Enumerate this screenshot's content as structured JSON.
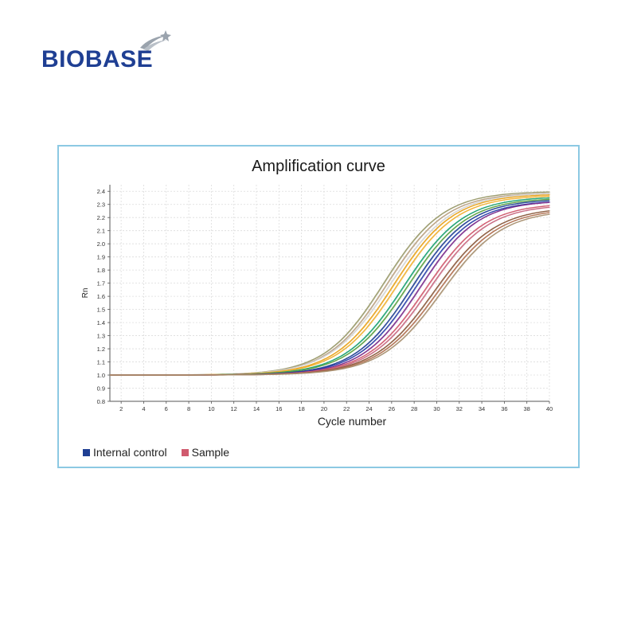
{
  "brand": {
    "name": "BIOBASE",
    "logo_icon": "swoosh-star-logo",
    "colors": {
      "text": "#1f3f93",
      "swoosh": "#9aa3ad"
    }
  },
  "chart_data": {
    "type": "line",
    "title": "Amplification curve",
    "xlabel": "Cycle number",
    "ylabel": "Rn",
    "xlim": [
      1,
      40
    ],
    "ylim": [
      0.8,
      2.45
    ],
    "x_ticks": [
      2,
      4,
      6,
      8,
      10,
      12,
      14,
      16,
      18,
      20,
      22,
      24,
      26,
      28,
      30,
      32,
      34,
      36,
      38,
      40
    ],
    "y_ticks": [
      0.8,
      0.9,
      1.0,
      1.1,
      1.2,
      1.3,
      1.4,
      1.5,
      1.6,
      1.7,
      1.8,
      1.9,
      2.0,
      2.1,
      2.2,
      2.3,
      2.4
    ],
    "grid": true,
    "legend": [
      {
        "name": "Internal control",
        "color": "#1f3f93"
      },
      {
        "name": "Sample",
        "color": "#d05a6e"
      }
    ],
    "curve_model": {
      "baseline": 1.0
    },
    "series": [
      {
        "color": "#9a9a6a",
        "midpoint_cycle": 25.3,
        "plateau": 2.4,
        "steepness": 0.38
      },
      {
        "color": "#b8a082",
        "midpoint_cycle": 25.6,
        "plateau": 2.39,
        "steepness": 0.38
      },
      {
        "color": "#d3d3d3",
        "midpoint_cycle": 25.9,
        "plateau": 2.39,
        "steepness": 0.37
      },
      {
        "color": "#e8a21a",
        "midpoint_cycle": 26.2,
        "plateau": 2.38,
        "steepness": 0.38
      },
      {
        "color": "#f0b030",
        "midpoint_cycle": 26.5,
        "plateau": 2.37,
        "steepness": 0.38
      },
      {
        "color": "#18a070",
        "midpoint_cycle": 27.1,
        "plateau": 2.36,
        "steepness": 0.38
      },
      {
        "color": "#5aa040",
        "midpoint_cycle": 27.4,
        "plateau": 2.35,
        "steepness": 0.38
      },
      {
        "color": "#1f3f93",
        "midpoint_cycle": 27.8,
        "plateau": 2.34,
        "steepness": 0.39
      },
      {
        "color": "#2a3fa8",
        "midpoint_cycle": 28.1,
        "plateau": 2.33,
        "steepness": 0.39
      },
      {
        "color": "#7a2a8a",
        "midpoint_cycle": 28.5,
        "plateau": 2.33,
        "steepness": 0.39
      },
      {
        "color": "#d05a6e",
        "midpoint_cycle": 29.0,
        "plateau": 2.31,
        "steepness": 0.38
      },
      {
        "color": "#c86880",
        "midpoint_cycle": 29.3,
        "plateau": 2.3,
        "steepness": 0.38
      },
      {
        "color": "#8b5a3c",
        "midpoint_cycle": 29.8,
        "plateau": 2.28,
        "steepness": 0.37
      },
      {
        "color": "#b07050",
        "midpoint_cycle": 30.1,
        "plateau": 2.27,
        "steepness": 0.37
      },
      {
        "color": "#a89070",
        "midpoint_cycle": 30.4,
        "plateau": 2.26,
        "steepness": 0.37
      }
    ]
  }
}
